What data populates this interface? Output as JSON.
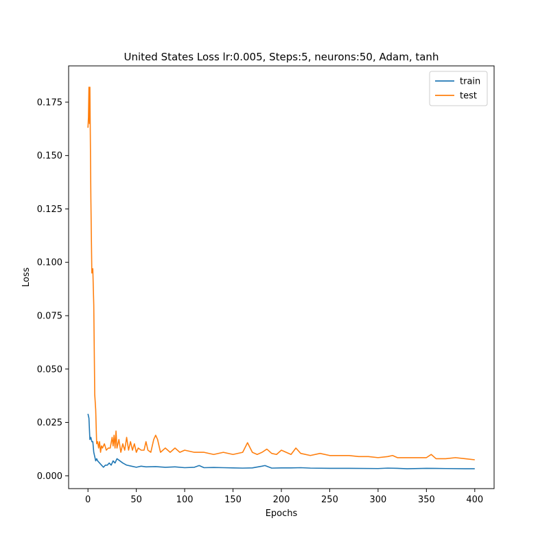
{
  "chart_data": {
    "type": "line",
    "title": "United States Loss   lr:0.005, Steps:5, neurons:50, Adam, tanh",
    "xlabel": "Epochs",
    "ylabel": "Loss",
    "xlim": [
      -20,
      420
    ],
    "ylim": [
      -0.006,
      0.192
    ],
    "xticks": [
      0,
      50,
      100,
      150,
      200,
      250,
      300,
      350,
      400
    ],
    "yticks": [
      0.0,
      0.025,
      0.05,
      0.075,
      0.1,
      0.125,
      0.15,
      0.175
    ],
    "ytick_labels": [
      "0.000",
      "0.025",
      "0.050",
      "0.075",
      "0.100",
      "0.125",
      "0.150",
      "0.175"
    ],
    "grid": false,
    "legend_position": "top-right",
    "series": [
      {
        "name": "train",
        "color": "#1f77b4",
        "x": [
          0,
          1,
          2,
          3,
          4,
          5,
          6,
          7,
          8,
          9,
          10,
          12,
          14,
          16,
          18,
          20,
          22,
          24,
          26,
          28,
          30,
          33,
          36,
          40,
          45,
          50,
          55,
          60,
          70,
          80,
          90,
          100,
          110,
          115,
          120,
          130,
          140,
          150,
          160,
          170,
          180,
          183,
          190,
          200,
          210,
          220,
          230,
          250,
          270,
          300,
          310,
          320,
          330,
          350,
          370,
          390,
          400
        ],
        "y": [
          0.029,
          0.027,
          0.017,
          0.018,
          0.016,
          0.016,
          0.011,
          0.009,
          0.007,
          0.008,
          0.007,
          0.006,
          0.005,
          0.004,
          0.005,
          0.005,
          0.006,
          0.005,
          0.007,
          0.006,
          0.008,
          0.007,
          0.006,
          0.005,
          0.0045,
          0.004,
          0.0045,
          0.0042,
          0.0043,
          0.004,
          0.0042,
          0.0038,
          0.004,
          0.0048,
          0.0038,
          0.0039,
          0.0038,
          0.0037,
          0.0036,
          0.0037,
          0.0045,
          0.0048,
          0.0036,
          0.0037,
          0.0037,
          0.0038,
          0.0036,
          0.0035,
          0.0035,
          0.0034,
          0.0036,
          0.0035,
          0.0033,
          0.0035,
          0.0034,
          0.0033,
          0.0033
        ]
      },
      {
        "name": "test",
        "color": "#ff7f0e",
        "x": [
          0,
          0.5,
          1,
          1.5,
          2,
          3,
          4,
          5,
          6,
          7,
          8,
          9,
          10,
          11,
          12,
          13,
          14,
          15,
          17,
          19,
          21,
          23,
          25,
          26,
          27,
          28,
          29,
          30,
          32,
          34,
          36,
          38,
          40,
          42,
          44,
          46,
          48,
          50,
          52,
          55,
          58,
          60,
          62,
          65,
          68,
          70,
          72,
          75,
          80,
          85,
          90,
          95,
          100,
          110,
          120,
          130,
          140,
          150,
          160,
          165,
          170,
          175,
          180,
          185,
          190,
          195,
          200,
          210,
          215,
          220,
          230,
          240,
          250,
          260,
          270,
          280,
          290,
          300,
          310,
          315,
          320,
          330,
          340,
          350,
          355,
          360,
          370,
          380,
          390,
          400
        ],
        "y": [
          0.163,
          0.168,
          0.182,
          0.165,
          0.182,
          0.13,
          0.095,
          0.097,
          0.08,
          0.038,
          0.031,
          0.015,
          0.016,
          0.013,
          0.016,
          0.011,
          0.014,
          0.013,
          0.015,
          0.012,
          0.013,
          0.013,
          0.018,
          0.014,
          0.019,
          0.013,
          0.021,
          0.013,
          0.017,
          0.011,
          0.015,
          0.012,
          0.018,
          0.012,
          0.016,
          0.012,
          0.015,
          0.011,
          0.013,
          0.012,
          0.012,
          0.016,
          0.012,
          0.011,
          0.017,
          0.019,
          0.017,
          0.011,
          0.013,
          0.011,
          0.013,
          0.011,
          0.012,
          0.011,
          0.011,
          0.01,
          0.011,
          0.01,
          0.011,
          0.0155,
          0.011,
          0.01,
          0.011,
          0.0125,
          0.0105,
          0.01,
          0.012,
          0.01,
          0.013,
          0.0105,
          0.0095,
          0.0105,
          0.0095,
          0.0095,
          0.0095,
          0.009,
          0.009,
          0.0085,
          0.009,
          0.0095,
          0.0085,
          0.0085,
          0.0085,
          0.0085,
          0.01,
          0.008,
          0.008,
          0.0085,
          0.008,
          0.0075
        ]
      }
    ]
  }
}
